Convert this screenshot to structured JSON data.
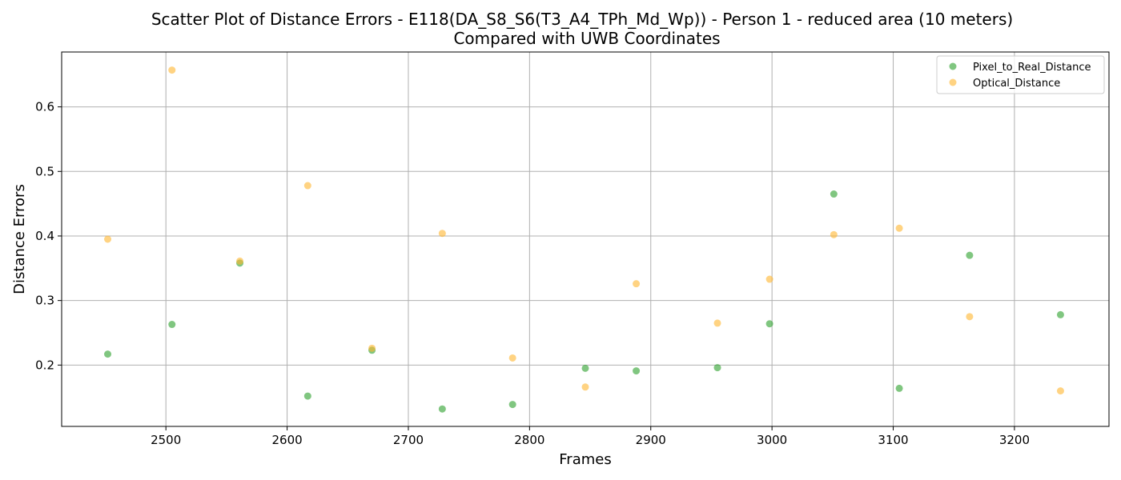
{
  "chart_data": {
    "type": "scatter",
    "title_line1": "Scatter Plot of Distance Errors - E118(DA_S8_S6(T3_A4_TPh_Md_Wp)) - Person 1 - reduced area (10 meters)",
    "title_line2": "Compared with UWB Coordinates",
    "xlabel": "Frames",
    "ylabel": "Distance Errors",
    "xlim": [
      2414,
      3278
    ],
    "ylim": [
      0.105,
      0.685
    ],
    "xticks": [
      2500,
      2600,
      2700,
      2800,
      2900,
      3000,
      3100,
      3200
    ],
    "yticks": [
      0.2,
      0.3,
      0.4,
      0.5,
      0.6
    ],
    "ytick_labels": [
      "0.2",
      "0.3",
      "0.4",
      "0.5",
      "0.6"
    ],
    "grid": true,
    "legend_position": "top-right",
    "series": [
      {
        "name": "Pixel_to_Real_Distance",
        "color": "#2ca02c",
        "x": [
          2452,
          2505,
          2561,
          2617,
          2670,
          2728,
          2786,
          2846,
          2888,
          2955,
          2998,
          3051,
          3105,
          3163,
          3238
        ],
        "y": [
          0.217,
          0.263,
          0.358,
          0.152,
          0.223,
          0.132,
          0.139,
          0.195,
          0.191,
          0.196,
          0.264,
          0.465,
          0.164,
          0.37,
          0.278
        ]
      },
      {
        "name": "Optical_Distance",
        "color": "#ffb52e",
        "x": [
          2452,
          2505,
          2561,
          2617,
          2670,
          2728,
          2786,
          2846,
          2888,
          2955,
          2998,
          3051,
          3105,
          3163,
          3238
        ],
        "y": [
          0.395,
          0.657,
          0.361,
          0.478,
          0.226,
          0.404,
          0.211,
          0.166,
          0.326,
          0.265,
          0.333,
          0.402,
          0.412,
          0.275,
          0.16
        ]
      }
    ]
  }
}
